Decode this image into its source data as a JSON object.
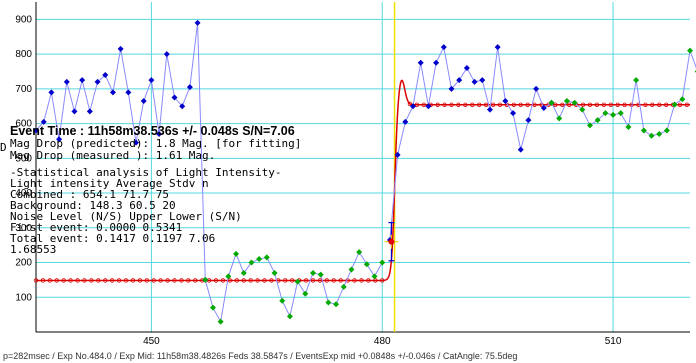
{
  "chart_data": {
    "type": "line",
    "xlim": [
      435,
      520
    ],
    "ylim": [
      0,
      950
    ],
    "x_ticks": [
      450,
      480,
      510
    ],
    "y_ticks": [
      100,
      200,
      300,
      400,
      500,
      600,
      700,
      800,
      900
    ],
    "grid": true,
    "event_time_marker_x": 481.6,
    "series": [
      {
        "name": "Background",
        "color": "#0000cc",
        "marker": "diamond",
        "values": [
          [
            435,
            580
          ],
          [
            436,
            605
          ],
          [
            437,
            690
          ],
          [
            438,
            555
          ],
          [
            439,
            720
          ],
          [
            440,
            635
          ],
          [
            441,
            725
          ],
          [
            442,
            635
          ],
          [
            443,
            720
          ],
          [
            444,
            740
          ],
          [
            445,
            690
          ],
          [
            446,
            815
          ],
          [
            447,
            690
          ],
          [
            448,
            545
          ],
          [
            449,
            665
          ],
          [
            450,
            725
          ],
          [
            451,
            570
          ],
          [
            452,
            800
          ],
          [
            453,
            675
          ],
          [
            454,
            650
          ],
          [
            455,
            705
          ],
          [
            456,
            890
          ],
          [
            457,
            150
          ]
        ]
      },
      {
        "name": "Combined",
        "color": "#00aa00",
        "marker": "diamond",
        "values": [
          [
            457,
            150
          ],
          [
            458,
            70
          ],
          [
            459,
            30
          ],
          [
            460,
            160
          ],
          [
            461,
            225
          ],
          [
            462,
            170
          ],
          [
            463,
            200
          ],
          [
            464,
            210
          ],
          [
            465,
            215
          ],
          [
            466,
            170
          ],
          [
            467,
            90
          ],
          [
            468,
            45
          ],
          [
            469,
            145
          ],
          [
            470,
            110
          ],
          [
            471,
            170
          ],
          [
            472,
            165
          ],
          [
            473,
            85
          ],
          [
            474,
            80
          ],
          [
            475,
            130
          ],
          [
            476,
            180
          ],
          [
            477,
            230
          ],
          [
            478,
            195
          ],
          [
            479,
            160
          ],
          [
            480,
            200
          ]
        ]
      },
      {
        "name": "Event",
        "color": "#0000cc",
        "marker": "diamond",
        "values": [
          [
            481,
            265
          ],
          [
            482,
            510
          ],
          [
            483,
            605
          ],
          [
            484,
            650
          ],
          [
            485,
            775
          ],
          [
            486,
            650
          ],
          [
            487,
            775
          ],
          [
            488,
            820
          ],
          [
            489,
            700
          ],
          [
            490,
            725
          ],
          [
            491,
            760
          ],
          [
            492,
            720
          ],
          [
            493,
            725
          ],
          [
            494,
            640
          ],
          [
            495,
            820
          ],
          [
            496,
            665
          ],
          [
            497,
            630
          ],
          [
            498,
            525
          ],
          [
            499,
            610
          ],
          [
            500,
            700
          ],
          [
            501,
            645
          ],
          [
            502,
            660
          ]
        ]
      },
      {
        "name": "Background after",
        "color": "#00aa00",
        "marker": "diamond",
        "values": [
          [
            502,
            660
          ],
          [
            503,
            615
          ],
          [
            504,
            665
          ],
          [
            505,
            660
          ],
          [
            506,
            640
          ],
          [
            507,
            595
          ],
          [
            508,
            610
          ],
          [
            509,
            630
          ],
          [
            510,
            625
          ],
          [
            511,
            630
          ],
          [
            512,
            590
          ],
          [
            513,
            725
          ],
          [
            514,
            580
          ],
          [
            515,
            565
          ],
          [
            516,
            570
          ],
          [
            517,
            580
          ],
          [
            518,
            655
          ],
          [
            519,
            670
          ],
          [
            520,
            810
          ],
          [
            521,
            750
          ],
          [
            522,
            540
          ]
        ]
      }
    ],
    "fit": {
      "color": "#dd0000",
      "low": 148.3,
      "high": 654.1,
      "center": 481.6,
      "overshoot": 75
    },
    "event_point": {
      "x": 481.2,
      "y": 260,
      "err": 55
    }
  },
  "panel": {
    "event_time": "Event Time : 11h58m38.536s  +/- 0.048s  S/N=7.06",
    "mag_pred": "Mag Drop (predicted):  1.8   Mag. [for fitting]",
    "mag_meas": "Mag Drop (measured ):  1.61  Mag.",
    "stat_title": "-Statistical analysis of Light Intensity-",
    "stat_header": "Light intensity    Average   Stdv     n",
    "combined": "   Combined   :     654.1     71.7     75",
    "background": "   Background:      148.3     60.5     20",
    "noise_header": "Noise Level (N/S)  Upper    Lower   (S/N)",
    "first_event": "   First event:     0.0000   0.5341",
    "total_event": "   Total event:     0.1417   0.1197   7.06",
    "extra_value": "1.68553",
    "left_d": "D"
  },
  "footer": "p=282msec / Exp No.484.0 / Exp Mid: 11h58m38.4826s  Feds 38.5847s / EventsExp mid +0.0848s +/-0.046s / CatAngle: 75.5deg"
}
